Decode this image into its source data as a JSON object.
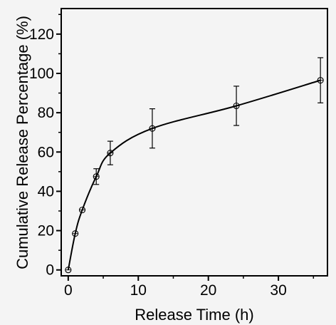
{
  "chart_data": {
    "type": "line",
    "xlabel": "Release Time (h)",
    "ylabel": "Cumulative Release Percentage (%)",
    "xlim": [
      -1,
      37
    ],
    "ylim": [
      -3,
      133
    ],
    "xticks": [
      0,
      10,
      20,
      30
    ],
    "yticks": [
      0,
      20,
      40,
      60,
      80,
      100,
      120
    ],
    "grid": false,
    "legend": "none",
    "colors": {
      "line": "#000000",
      "marker": "#000000",
      "axes": "#000000",
      "background": "#f4f4f4"
    },
    "series": [
      {
        "x": [
          0,
          1,
          2,
          4,
          6,
          12,
          24,
          36
        ],
        "y": [
          0,
          18.5,
          30.5,
          47.5,
          59.5,
          72,
          83.5,
          96.5
        ],
        "error": [
          0,
          0,
          0,
          4,
          6,
          10,
          10,
          11.5
        ]
      }
    ]
  }
}
